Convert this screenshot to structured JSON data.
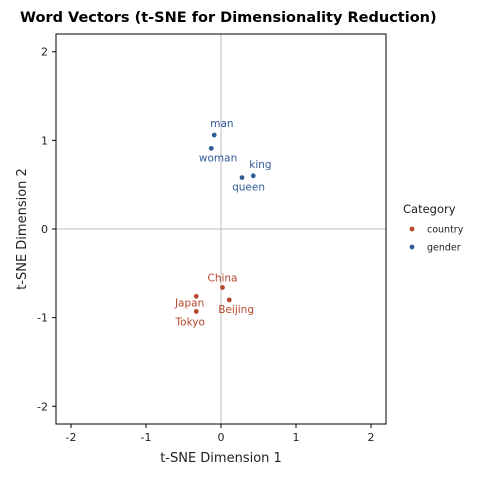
{
  "chart_data": {
    "type": "scatter",
    "title": "Word Vectors (t-SNE for Dimensionality Reduction)",
    "xlabel": "t-SNE Dimension 1",
    "ylabel": "t-SNE Dimension 2",
    "xlim": [
      -2.2,
      2.2
    ],
    "ylim": [
      -2.2,
      2.2
    ],
    "xticks": [
      -2,
      -1,
      0,
      1,
      2
    ],
    "yticks": [
      -2,
      -1,
      0,
      1,
      2
    ],
    "grid": false,
    "reference_lines": {
      "x": 0,
      "y": 0,
      "color": "#bdbdbd"
    },
    "legend": {
      "title": "Category",
      "position": "right",
      "entries": [
        {
          "name": "country",
          "color": "#b5472a"
        },
        {
          "name": "gender",
          "color": "#2f5b9a"
        }
      ]
    },
    "series": [
      {
        "name": "country",
        "color": "#b5472a",
        "points": [
          {
            "label": "China",
            "x": 0.02,
            "y": -0.66,
            "anchor": "above"
          },
          {
            "label": "Japan",
            "x": -0.33,
            "y": -0.76,
            "anchor": "below-left"
          },
          {
            "label": "Beijing",
            "x": 0.11,
            "y": -0.8,
            "anchor": "below-right"
          },
          {
            "label": "Tokyo",
            "x": -0.33,
            "y": -0.93,
            "anchor": "below"
          }
        ]
      },
      {
        "name": "gender",
        "color": "#2f5b9a",
        "points": [
          {
            "label": "man",
            "x": -0.09,
            "y": 1.06,
            "anchor": "above-right"
          },
          {
            "label": "woman",
            "x": -0.13,
            "y": 0.91,
            "anchor": "below-left"
          },
          {
            "label": "king",
            "x": 0.43,
            "y": 0.6,
            "anchor": "above-right"
          },
          {
            "label": "queen",
            "x": 0.28,
            "y": 0.58,
            "anchor": "below-left"
          }
        ]
      }
    ]
  }
}
